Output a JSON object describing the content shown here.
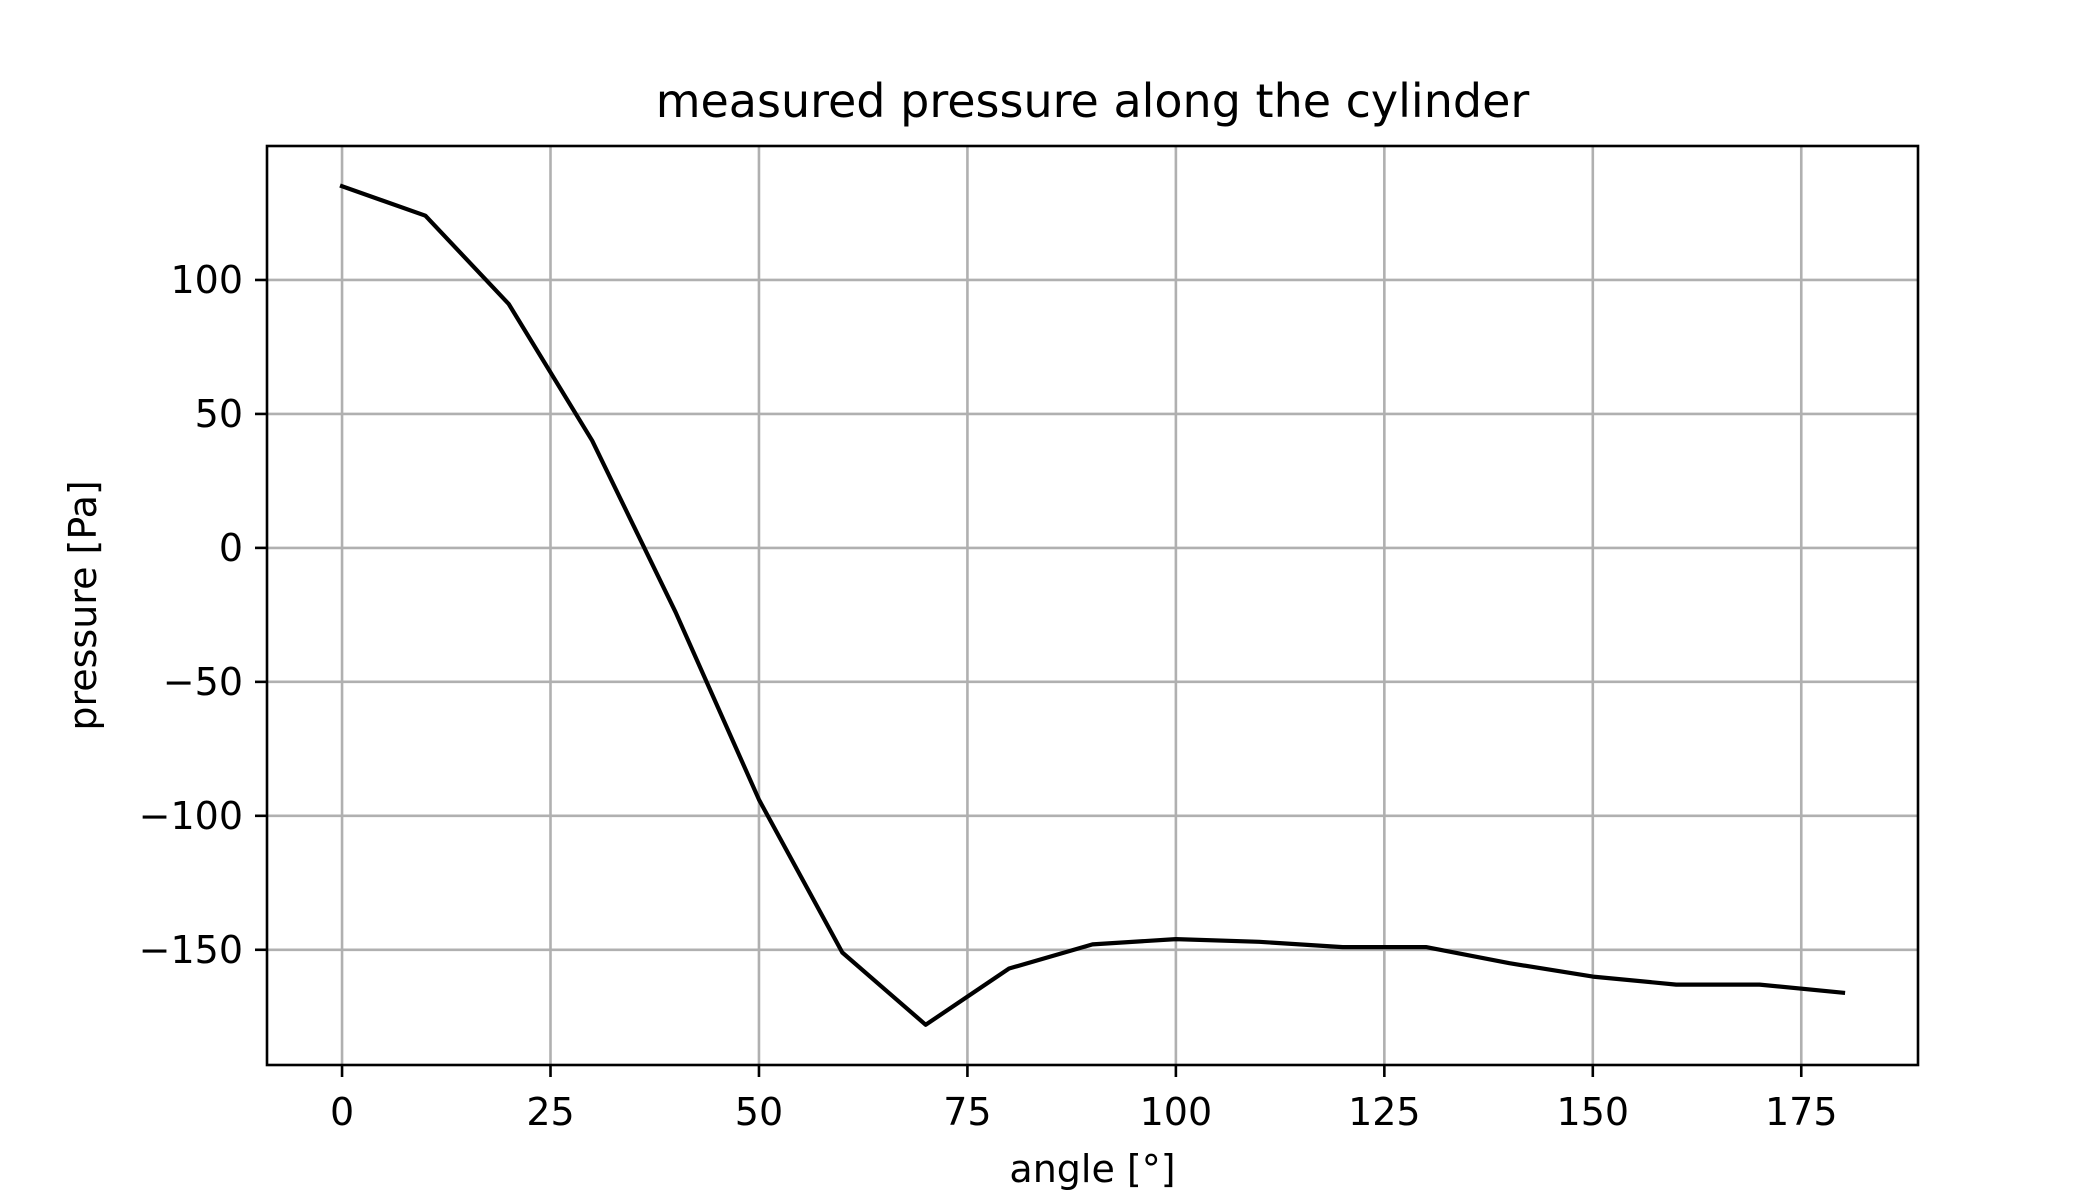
{
  "chart_data": {
    "type": "line",
    "title": "measured pressure along the cylinder",
    "xlabel": "angle [°]",
    "ylabel": "pressure [Pa]",
    "xlim": [
      -9,
      189
    ],
    "ylim": [
      -193,
      150
    ],
    "xticks": [
      0,
      25,
      50,
      75,
      100,
      125,
      150,
      175
    ],
    "yticks": [
      -150,
      -100,
      -50,
      0,
      50,
      100
    ],
    "xtick_labels": [
      "0",
      "25",
      "50",
      "75",
      "100",
      "125",
      "150",
      "175"
    ],
    "ytick_labels": [
      "−150",
      "−100",
      "−50",
      "0",
      "50",
      "100"
    ],
    "grid": true,
    "series": [
      {
        "color": "#000000",
        "x": [
          0,
          10,
          20,
          30,
          40,
          50,
          60,
          70,
          80,
          90,
          100,
          110,
          120,
          130,
          140,
          150,
          160,
          170,
          180
        ],
        "y": [
          135,
          124,
          91,
          40,
          -24,
          -94,
          -151,
          -178,
          -157,
          -148,
          -146,
          -147,
          -149,
          -149,
          -155,
          -160,
          -163,
          -163,
          -166
        ]
      }
    ]
  }
}
